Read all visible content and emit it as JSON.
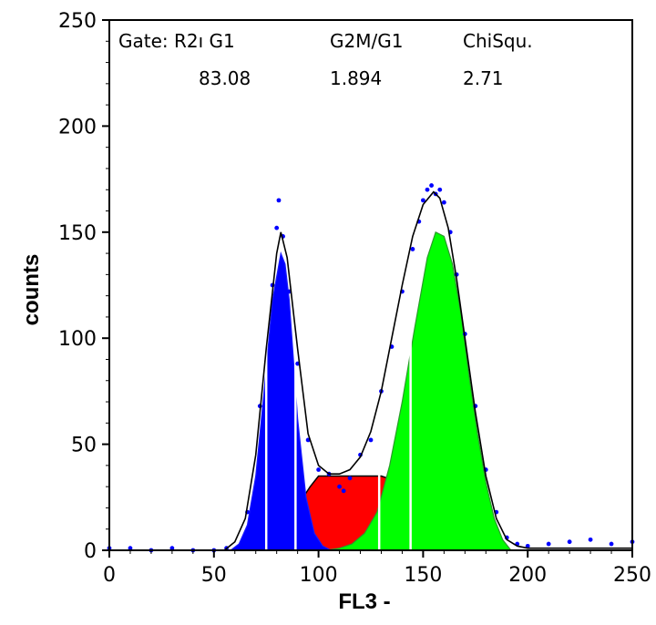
{
  "chart_data": {
    "type": "area",
    "xlabel": "FL3 -",
    "ylabel": "counts",
    "xlim": [
      0,
      250
    ],
    "ylim": [
      0,
      250
    ],
    "x_ticks": [
      "0",
      "50",
      "100",
      "150",
      "200",
      "250"
    ],
    "y_ticks": [
      "0",
      "50",
      "100",
      "150",
      "200",
      "250"
    ],
    "grid": false,
    "header": {
      "labels": [
        "Gate: R2ı G1",
        "G2M/G1",
        "ChiSqu."
      ],
      "values": [
        "83.08",
        "1.894",
        "2.71"
      ]
    },
    "colors": {
      "g1_peak": "#0000ff",
      "s_phase": "#ff0000",
      "g2m_peak": "#00ff00",
      "fit_line": "#000000",
      "data_points": "#0000ff"
    },
    "g1_peak": {
      "x": [
        58,
        62,
        66,
        70,
        74,
        78,
        82,
        84,
        86,
        88,
        90,
        94,
        98,
        102,
        106
      ],
      "y": [
        0,
        3,
        12,
        35,
        75,
        118,
        140,
        135,
        118,
        90,
        62,
        25,
        8,
        2,
        0
      ]
    },
    "s_phase": {
      "x": [
        60,
        66,
        72,
        78,
        84,
        90,
        96,
        100,
        130,
        136,
        142,
        148,
        154,
        160,
        166,
        172,
        178,
        184,
        190
      ],
      "y": [
        0,
        1,
        3,
        7,
        13,
        21,
        30,
        35,
        35,
        33,
        30,
        26,
        21,
        15,
        10,
        6,
        3,
        1,
        0
      ]
    },
    "g2m_peak": {
      "x": [
        104,
        110,
        116,
        122,
        128,
        134,
        140,
        146,
        152,
        156,
        160,
        164,
        168,
        172,
        176,
        180,
        184,
        188,
        192
      ],
      "y": [
        0,
        1,
        3,
        8,
        18,
        40,
        70,
        105,
        138,
        150,
        148,
        135,
        112,
        82,
        55,
        32,
        15,
        5,
        0
      ]
    },
    "fit_line": {
      "x": [
        0,
        55,
        60,
        65,
        70,
        75,
        80,
        82,
        85,
        90,
        95,
        100,
        105,
        110,
        115,
        120,
        125,
        130,
        135,
        140,
        145,
        150,
        155,
        158,
        162,
        166,
        170,
        175,
        180,
        185,
        190,
        195,
        200,
        250
      ],
      "y": [
        0,
        0,
        4,
        15,
        45,
        95,
        140,
        150,
        138,
        95,
        55,
        40,
        36,
        36,
        38,
        44,
        56,
        75,
        100,
        125,
        148,
        163,
        169,
        166,
        152,
        128,
        100,
        65,
        35,
        15,
        5,
        2,
        1,
        1
      ]
    },
    "data_points": {
      "x": [
        0,
        10,
        20,
        30,
        40,
        50,
        56,
        66,
        72,
        78,
        80,
        81,
        83,
        86,
        90,
        95,
        100,
        105,
        110,
        112,
        115,
        120,
        125,
        130,
        135,
        140,
        145,
        148,
        150,
        152,
        154,
        156,
        158,
        160,
        163,
        166,
        170,
        175,
        180,
        185,
        190,
        195,
        200,
        210,
        220,
        230,
        240,
        250
      ],
      "y": [
        1,
        1,
        0,
        1,
        0,
        0,
        1,
        18,
        68,
        125,
        152,
        165,
        148,
        122,
        88,
        52,
        38,
        36,
        30,
        28,
        34,
        45,
        52,
        75,
        96,
        122,
        142,
        155,
        165,
        170,
        172,
        168,
        170,
        164,
        150,
        130,
        102,
        68,
        38,
        18,
        6,
        3,
        2,
        3,
        4,
        5,
        3,
        4
      ]
    },
    "gate_markers_x": [
      75,
      89,
      129,
      144
    ]
  }
}
